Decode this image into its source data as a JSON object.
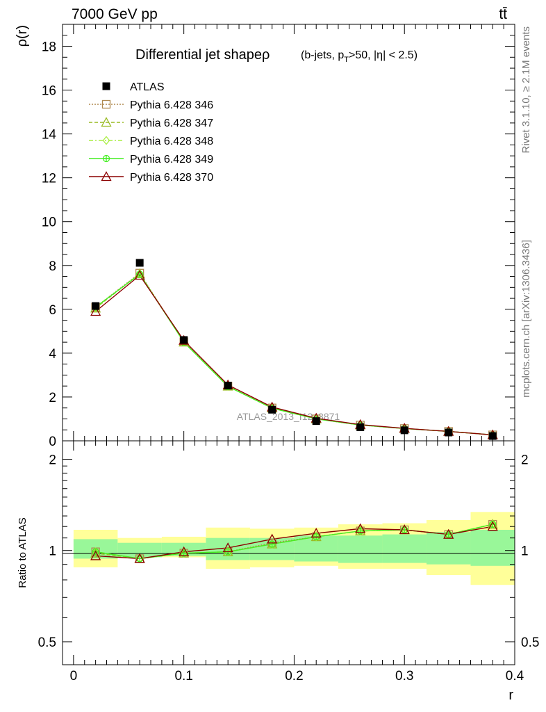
{
  "header": {
    "energy_label": "7000 GeV pp",
    "process_label": "tt̄"
  },
  "side_labels": {
    "rivet": "Rivet 3.1.10, ≥ 2.1M events",
    "mcplots": "mcplots.cern.ch [arXiv:1306.3436]"
  },
  "colors": {
    "data": "#000000",
    "p346": "#b08a50",
    "p347": "#99bb22",
    "p348": "#aaee44",
    "p349": "#44ee22",
    "p370": "#8b0000",
    "band_inner": "#99f799",
    "band_outer": "#ffff99"
  },
  "chart_data": [
    {
      "type": "line",
      "title": "Differential jet shapeρ",
      "subtitle_parts": [
        "(b-jets, p",
        "T",
        ">50, |η| < 2.5)"
      ],
      "ylabel": "ρ(r)",
      "xlabel": "",
      "watermark": "ATLAS_2013_I1243871",
      "xlim": [
        -0.01,
        0.4
      ],
      "ylim": [
        0,
        19
      ],
      "yticks": [
        0,
        2,
        4,
        6,
        8,
        10,
        12,
        14,
        16,
        18
      ],
      "ytick_labels": [
        "0",
        "2",
        "4",
        "6",
        "8",
        "10",
        "12",
        "14",
        "16",
        "18"
      ],
      "legend_position": "top-left",
      "x": [
        0.02,
        0.06,
        0.1,
        0.14,
        0.18,
        0.22,
        0.26,
        0.3,
        0.34,
        0.38
      ],
      "data_series": {
        "name": "ATLAS",
        "values": [
          6.15,
          8.12,
          4.6,
          2.52,
          1.42,
          0.9,
          0.62,
          0.48,
          0.38,
          0.22
        ]
      },
      "series": [
        {
          "name": "Pythia 6.428 346",
          "key": "p346",
          "marker": "open-square",
          "values": [
            6.1,
            7.65,
            4.52,
            2.5,
            1.5,
            1.0,
            0.72,
            0.56,
            0.43,
            0.27
          ]
        },
        {
          "name": "Pythia 6.428 347",
          "key": "p347",
          "marker": "open-triangle",
          "values": [
            6.05,
            7.62,
            4.5,
            2.49,
            1.49,
            1.0,
            0.72,
            0.56,
            0.43,
            0.27
          ]
        },
        {
          "name": "Pythia 6.428 348",
          "key": "p348",
          "marker": "open-diamond",
          "values": [
            6.08,
            7.62,
            4.51,
            2.49,
            1.49,
            1.0,
            0.72,
            0.56,
            0.43,
            0.27
          ]
        },
        {
          "name": "Pythia 6.428 349",
          "key": "p349",
          "marker": "open-cross",
          "values": [
            6.1,
            7.6,
            4.5,
            2.48,
            1.49,
            1.0,
            0.72,
            0.56,
            0.43,
            0.27
          ]
        },
        {
          "name": "Pythia 6.428 370",
          "key": "p370",
          "marker": "open-triangle",
          "values": [
            5.9,
            7.55,
            4.58,
            2.55,
            1.54,
            1.03,
            0.74,
            0.57,
            0.43,
            0.27
          ]
        }
      ]
    },
    {
      "type": "line",
      "ylabel": "Ratio to ATLAS",
      "xlabel": "r",
      "xlim": [
        -0.01,
        0.4
      ],
      "ylim": [
        0.42,
        2.3
      ],
      "yscale": "log",
      "xticks": [
        0,
        0.1,
        0.2,
        0.3,
        0.4
      ],
      "xtick_labels": [
        "0",
        "0.1",
        "0.2",
        "0.3",
        "0.4"
      ],
      "yticks": [
        0.5,
        1,
        2
      ],
      "ytick_labels": [
        "0.5",
        "1",
        "2"
      ],
      "bins": [
        [
          0.0,
          0.04
        ],
        [
          0.04,
          0.08
        ],
        [
          0.08,
          0.12
        ],
        [
          0.12,
          0.16
        ],
        [
          0.16,
          0.2
        ],
        [
          0.2,
          0.24
        ],
        [
          0.24,
          0.28
        ],
        [
          0.28,
          0.32
        ],
        [
          0.32,
          0.36
        ],
        [
          0.36,
          0.4
        ]
      ],
      "band_inner": [
        [
          0.94,
          1.09
        ],
        [
          0.95,
          1.06
        ],
        [
          0.96,
          1.06
        ],
        [
          0.93,
          1.1
        ],
        [
          0.93,
          1.1
        ],
        [
          0.92,
          1.12
        ],
        [
          0.91,
          1.12
        ],
        [
          0.91,
          1.13
        ],
        [
          0.9,
          1.15
        ],
        [
          0.89,
          1.17
        ]
      ],
      "band_outer": [
        [
          0.88,
          1.17
        ],
        [
          0.95,
          1.1
        ],
        [
          0.95,
          1.11
        ],
        [
          0.87,
          1.19
        ],
        [
          0.88,
          1.18
        ],
        [
          0.89,
          1.19
        ],
        [
          0.87,
          1.22
        ],
        [
          0.87,
          1.23
        ],
        [
          0.83,
          1.26
        ],
        [
          0.77,
          1.34
        ]
      ],
      "x": [
        0.02,
        0.06,
        0.1,
        0.14,
        0.18,
        0.22,
        0.26,
        0.3,
        0.34,
        0.38
      ],
      "series": [
        {
          "name": "Pythia 6.428 346",
          "key": "p346",
          "marker": "open-square",
          "values": [
            0.99,
            0.94,
            0.98,
            0.99,
            1.06,
            1.11,
            1.16,
            1.17,
            1.13,
            1.22
          ]
        },
        {
          "name": "Pythia 6.428 347",
          "key": "p347",
          "marker": "open-triangle",
          "values": [
            0.98,
            0.94,
            0.98,
            0.99,
            1.05,
            1.11,
            1.16,
            1.17,
            1.13,
            1.22
          ]
        },
        {
          "name": "Pythia 6.428 348",
          "key": "p348",
          "marker": "open-diamond",
          "values": [
            0.99,
            0.94,
            0.98,
            0.99,
            1.05,
            1.11,
            1.16,
            1.17,
            1.13,
            1.22
          ]
        },
        {
          "name": "Pythia 6.428 349",
          "key": "p349",
          "marker": "open-cross",
          "values": [
            0.99,
            0.94,
            0.98,
            0.99,
            1.05,
            1.11,
            1.16,
            1.17,
            1.13,
            1.22
          ]
        },
        {
          "name": "Pythia 6.428 370",
          "key": "p370",
          "marker": "open-triangle",
          "values": [
            0.96,
            0.94,
            0.99,
            1.02,
            1.09,
            1.14,
            1.18,
            1.17,
            1.13,
            1.2
          ]
        }
      ]
    }
  ]
}
